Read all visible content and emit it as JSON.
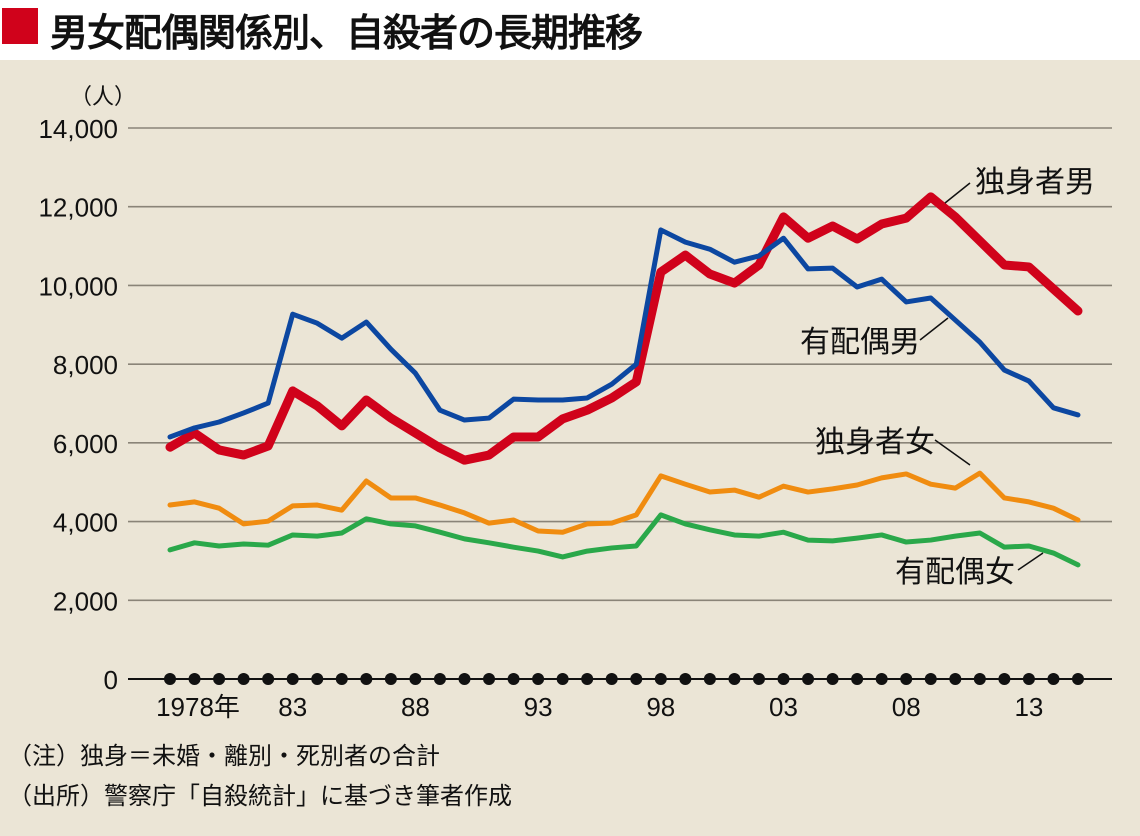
{
  "title": "男女配偶関係別、自殺者の長期推移",
  "colors": {
    "title_square": "#d0021b",
    "background": "#ebe5d6",
    "single_male": "#d0021b",
    "married_male": "#0c47a1",
    "single_female": "#f08c10",
    "married_female": "#2aa84a"
  },
  "notes": [
    "（注）独身＝未婚・離別・死別者の合計",
    "（出所）警察庁「自殺統計」に基づき筆者作成"
  ],
  "chart_data": {
    "type": "line",
    "title": "男女配偶関係別、自殺者の長期推移",
    "ylabel": "（人）",
    "xlabel": "",
    "ylim": [
      0,
      14000
    ],
    "yticks": [
      0,
      2000,
      4000,
      6000,
      8000,
      10000,
      12000,
      14000
    ],
    "ytick_labels": [
      "0",
      "2,000",
      "4,000",
      "6,000",
      "8,000",
      "10,000",
      "12,000",
      "14,000"
    ],
    "xticks": [
      1978,
      1983,
      1988,
      1993,
      1998,
      2003,
      2008,
      2013
    ],
    "xtick_labels": [
      "1978年",
      "83",
      "88",
      "93",
      "98",
      "03",
      "08",
      "13"
    ],
    "grid": true,
    "x": [
      1978,
      1979,
      1980,
      1981,
      1982,
      1983,
      1984,
      1985,
      1986,
      1987,
      1988,
      1989,
      1990,
      1991,
      1992,
      1993,
      1994,
      1995,
      1996,
      1997,
      1998,
      1999,
      2000,
      2001,
      2002,
      2003,
      2004,
      2005,
      2006,
      2007,
      2008,
      2009,
      2010,
      2011,
      2012,
      2013,
      2014,
      2015
    ],
    "series": [
      {
        "name": "独身者男",
        "color": "#d0021b",
        "values": [
          5890,
          6250,
          5820,
          5690,
          5920,
          7320,
          6940,
          6430,
          7090,
          6630,
          6250,
          5870,
          5560,
          5690,
          6150,
          6150,
          6610,
          6830,
          7140,
          7550,
          10340,
          10770,
          10290,
          10060,
          10520,
          11740,
          11200,
          11510,
          11180,
          11560,
          11710,
          12250,
          11740,
          11130,
          10520,
          10470,
          9910,
          9350
        ]
      },
      {
        "name": "有配偶男",
        "color": "#0c47a1",
        "values": [
          6150,
          6380,
          6530,
          6760,
          7010,
          9270,
          9040,
          8660,
          9070,
          8380,
          7770,
          6830,
          6580,
          6630,
          7110,
          7090,
          7090,
          7140,
          7490,
          8000,
          11410,
          11100,
          10920,
          10590,
          10750,
          11200,
          10420,
          10440,
          9960,
          10160,
          9580,
          9680,
          9120,
          8560,
          7850,
          7570,
          6890,
          6710
        ]
      },
      {
        "name": "独身者女",
        "color": "#f08c10",
        "values": [
          4420,
          4500,
          4340,
          3940,
          4010,
          4400,
          4420,
          4290,
          5030,
          4600,
          4600,
          4420,
          4220,
          3960,
          4040,
          3760,
          3730,
          3940,
          3960,
          4170,
          5160,
          4950,
          4750,
          4800,
          4620,
          4900,
          4750,
          4830,
          4930,
          5110,
          5210,
          4950,
          4850,
          5230,
          4600,
          4500,
          4340,
          4040
        ]
      },
      {
        "name": "有配偶女",
        "color": "#2aa84a",
        "values": [
          3280,
          3460,
          3380,
          3430,
          3400,
          3660,
          3630,
          3710,
          4070,
          3940,
          3890,
          3730,
          3560,
          3460,
          3350,
          3250,
          3100,
          3250,
          3330,
          3380,
          4170,
          3940,
          3790,
          3660,
          3630,
          3730,
          3530,
          3510,
          3580,
          3660,
          3480,
          3530,
          3630,
          3710,
          3350,
          3380,
          3200,
          2900
        ]
      }
    ]
  }
}
